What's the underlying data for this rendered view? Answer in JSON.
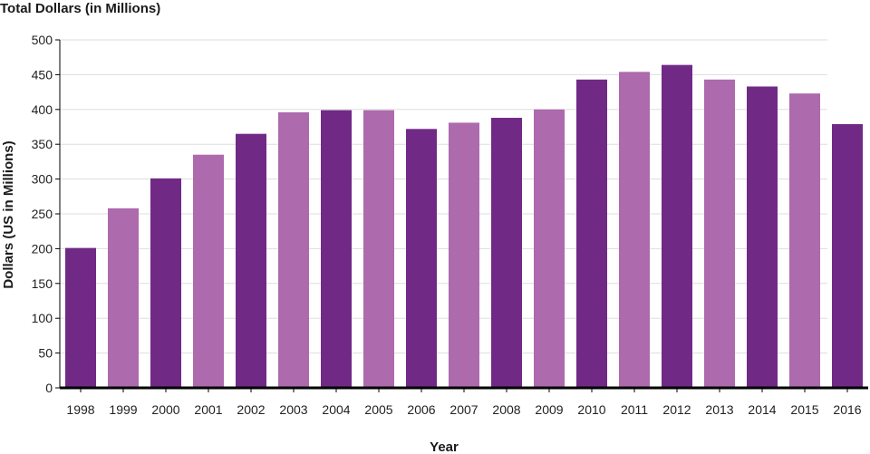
{
  "chart_data": {
    "type": "bar",
    "title": "Total Dollars (in Millions)",
    "xlabel": "Year",
    "ylabel": "Dollars (US in Millions)",
    "ylim": [
      0,
      500
    ],
    "yticks": [
      0,
      50,
      100,
      150,
      200,
      250,
      300,
      350,
      400,
      450,
      500
    ],
    "grid": true,
    "categories": [
      "1998",
      "1999",
      "2000",
      "2001",
      "2002",
      "2003",
      "2004",
      "2005",
      "2006",
      "2007",
      "2008",
      "2009",
      "2010",
      "2011",
      "2012",
      "2013",
      "2014",
      "2015",
      "2016"
    ],
    "values": [
      201,
      258,
      301,
      335,
      365,
      396,
      399,
      399,
      372,
      381,
      388,
      400,
      443,
      454,
      464,
      443,
      433,
      423,
      379
    ],
    "colors": {
      "dark": "#702a86",
      "light": "#ad6aad",
      "axis": "#000000",
      "grid": "#dddddd"
    },
    "bar_color_pattern": [
      "dark",
      "light",
      "dark",
      "light",
      "dark",
      "light",
      "dark",
      "light",
      "dark",
      "light",
      "dark",
      "light",
      "dark",
      "light",
      "dark",
      "light",
      "dark",
      "light",
      "dark"
    ]
  }
}
